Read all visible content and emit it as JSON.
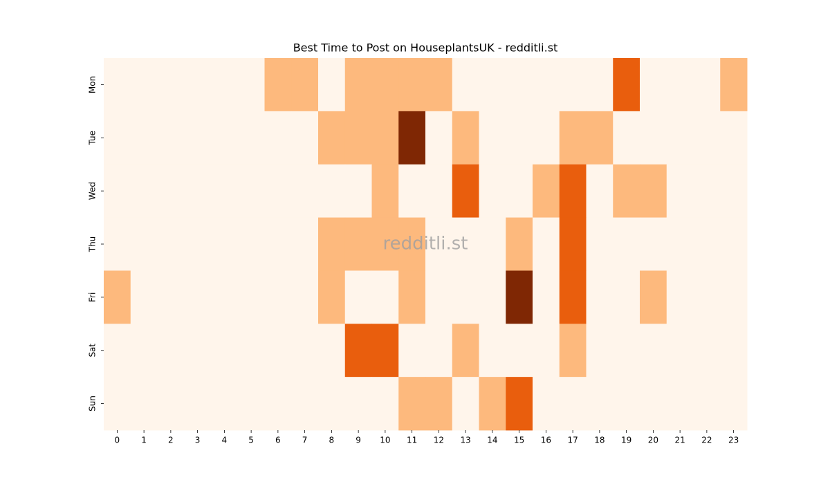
{
  "chart_data": {
    "type": "heatmap",
    "title": "Best Time to Post on HouseplantsUK - redditli.st",
    "watermark": "redditli.st",
    "x": [
      0,
      1,
      2,
      3,
      4,
      5,
      6,
      7,
      8,
      9,
      10,
      11,
      12,
      13,
      14,
      15,
      16,
      17,
      18,
      19,
      20,
      21,
      22,
      23
    ],
    "y": [
      "Mon",
      "Tue",
      "Wed",
      "Thu",
      "Fri",
      "Sat",
      "Sun"
    ],
    "values": [
      [
        0,
        0,
        0,
        0,
        0,
        0,
        1,
        1,
        0,
        1,
        1,
        1,
        1,
        0,
        0,
        0,
        0,
        0,
        0,
        2,
        0,
        0,
        0,
        1
      ],
      [
        0,
        0,
        0,
        0,
        0,
        0,
        0,
        0,
        1,
        1,
        1,
        3,
        0,
        1,
        0,
        0,
        0,
        1,
        1,
        0,
        0,
        0,
        0,
        0
      ],
      [
        0,
        0,
        0,
        0,
        0,
        0,
        0,
        0,
        0,
        0,
        1,
        0,
        0,
        2,
        0,
        0,
        1,
        2,
        0,
        1,
        1,
        0,
        0,
        0
      ],
      [
        0,
        0,
        0,
        0,
        0,
        0,
        0,
        0,
        1,
        1,
        1,
        1,
        0,
        0,
        0,
        1,
        0,
        2,
        0,
        0,
        0,
        0,
        0,
        0
      ],
      [
        1,
        0,
        0,
        0,
        0,
        0,
        0,
        0,
        1,
        0,
        0,
        1,
        0,
        0,
        0,
        3,
        0,
        2,
        0,
        0,
        1,
        0,
        0,
        0
      ],
      [
        0,
        0,
        0,
        0,
        0,
        0,
        0,
        0,
        0,
        2,
        2,
        0,
        0,
        1,
        0,
        0,
        0,
        1,
        0,
        0,
        0,
        0,
        0,
        0
      ],
      [
        0,
        0,
        0,
        0,
        0,
        0,
        0,
        0,
        0,
        0,
        0,
        1,
        1,
        0,
        1,
        2,
        0,
        0,
        0,
        0,
        0,
        0,
        0,
        0
      ]
    ],
    "zlim": [
      0,
      3
    ],
    "colorscale": [
      "#fff5eb",
      "#fdb97d",
      "#e95e0d",
      "#7f2704"
    ]
  }
}
